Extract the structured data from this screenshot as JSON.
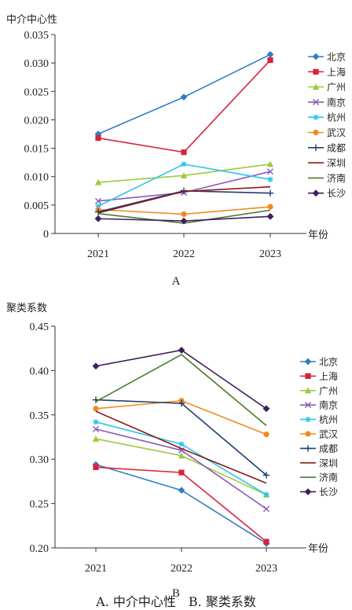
{
  "caption": "A. 中介中心性　B. 聚类系数",
  "chart_data": [
    {
      "type": "line",
      "ylabel": "中介中心性",
      "xlabel": "年份",
      "panel_label": "A",
      "x": [
        "2021",
        "2022",
        "2023"
      ],
      "ylim": [
        0,
        0.035
      ],
      "yticks": [
        "0",
        "0.005",
        "0.010",
        "0.015",
        "0.020",
        "0.025",
        "0.030",
        "0.035"
      ],
      "ytick_values": [
        0,
        0.005,
        0.01,
        0.015,
        0.02,
        0.025,
        0.03,
        0.035
      ],
      "legend_position": "right",
      "series": [
        {
          "name": "北京",
          "color": "#2e7fc4",
          "marker": "diamond",
          "values": [
            0.0175,
            0.024,
            0.0315
          ]
        },
        {
          "name": "上海",
          "color": "#d9233a",
          "marker": "square",
          "values": [
            0.0168,
            0.0143,
            0.0305
          ]
        },
        {
          "name": "广州",
          "color": "#9dcb3b",
          "marker": "triangle",
          "values": [
            0.009,
            0.0102,
            0.0122
          ]
        },
        {
          "name": "南京",
          "color": "#8a5cb8",
          "marker": "x",
          "values": [
            0.0057,
            0.0072,
            0.0109
          ]
        },
        {
          "name": "杭州",
          "color": "#2bc6ee",
          "marker": "star",
          "values": [
            0.0048,
            0.0122,
            0.0095
          ]
        },
        {
          "name": "武汉",
          "color": "#f08a24",
          "marker": "circle",
          "values": [
            0.0042,
            0.0034,
            0.0047
          ]
        },
        {
          "name": "成都",
          "color": "#1f3f6e",
          "marker": "plus",
          "values": [
            0.0038,
            0.0075,
            0.0071
          ]
        },
        {
          "name": "深圳",
          "color": "#8b1a1a",
          "marker": "none",
          "values": [
            0.0036,
            0.0074,
            0.0082
          ]
        },
        {
          "name": "济南",
          "color": "#4a7a2a",
          "marker": "none",
          "values": [
            0.0035,
            0.0018,
            0.0041
          ]
        },
        {
          "name": "长沙",
          "color": "#3d1f5e",
          "marker": "diamond",
          "values": [
            0.0026,
            0.0022,
            0.003
          ]
        }
      ]
    },
    {
      "type": "line",
      "ylabel": "聚类系数",
      "xlabel": "年份",
      "panel_label": "B",
      "x": [
        "2021",
        "2022",
        "2023"
      ],
      "ylim": [
        0.2,
        0.45
      ],
      "yticks": [
        "0.20",
        "0.25",
        "0.30",
        "0.35",
        "0.40",
        "0.45"
      ],
      "ytick_values": [
        0.2,
        0.25,
        0.3,
        0.35,
        0.4,
        0.45
      ],
      "legend_position": "right",
      "series": [
        {
          "name": "北京",
          "color": "#2e7fc4",
          "marker": "diamond",
          "values": [
            0.294,
            0.265,
            0.205
          ]
        },
        {
          "name": "上海",
          "color": "#d9233a",
          "marker": "square",
          "values": [
            0.291,
            0.285,
            0.207
          ]
        },
        {
          "name": "广州",
          "color": "#9dcb3b",
          "marker": "triangle",
          "values": [
            0.323,
            0.304,
            0.26
          ]
        },
        {
          "name": "南京",
          "color": "#8a5cb8",
          "marker": "x",
          "values": [
            0.334,
            0.31,
            0.244
          ]
        },
        {
          "name": "杭州",
          "color": "#2bc6ee",
          "marker": "star",
          "values": [
            0.342,
            0.317,
            0.26
          ]
        },
        {
          "name": "武汉",
          "color": "#f08a24",
          "marker": "circle",
          "values": [
            0.357,
            0.366,
            0.328
          ]
        },
        {
          "name": "成都",
          "color": "#1f3f6e",
          "marker": "plus",
          "values": [
            0.367,
            0.363,
            0.282
          ]
        },
        {
          "name": "深圳",
          "color": "#8b1a1a",
          "marker": "none",
          "values": [
            0.354,
            0.312,
            0.273
          ]
        },
        {
          "name": "济南",
          "color": "#4a7a2a",
          "marker": "none",
          "values": [
            0.365,
            0.418,
            0.338
          ]
        },
        {
          "name": "长沙",
          "color": "#3d1f5e",
          "marker": "diamond",
          "values": [
            0.405,
            0.423,
            0.357
          ]
        }
      ]
    }
  ]
}
